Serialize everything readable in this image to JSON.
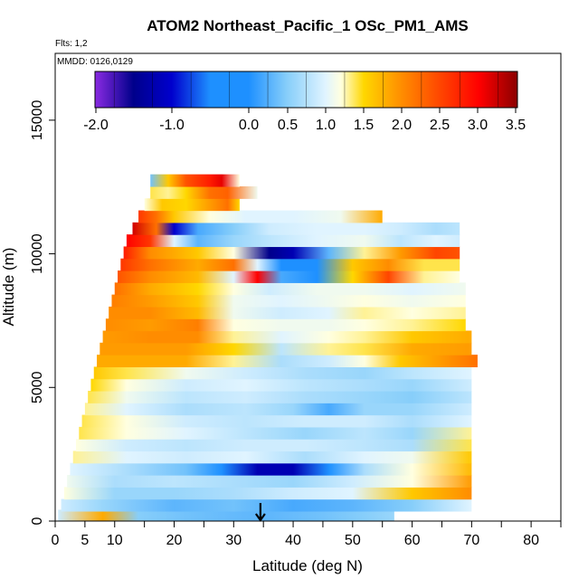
{
  "chart_data": {
    "type": "heatmap",
    "title": "ATOM2 Northeast_Pacific_1 OSc_PM1_AMS",
    "annotations": [
      "Flts: 1,2",
      "MMDD: 0126,0129"
    ],
    "xlabel": "Latitude (deg N)",
    "ylabel": "Altitude (m)",
    "xlim": [
      0,
      85
    ],
    "ylim": [
      0,
      17500
    ],
    "x_ticks": [
      0,
      5,
      10,
      20,
      30,
      40,
      50,
      60,
      70,
      80
    ],
    "x_minor_ticks": [
      15,
      25,
      35,
      45,
      55,
      65,
      75,
      85
    ],
    "y_ticks": [
      0,
      5000,
      10000,
      15000
    ],
    "colorbar": {
      "range": [
        -2.0,
        3.5
      ],
      "tick_labels": [
        "-2.0",
        "-1.0",
        "0.0",
        "0.5",
        "1.0",
        "1.5",
        "2.0",
        "2.5",
        "3.0",
        "3.5"
      ],
      "tick_values": [
        -2.0,
        -1.0,
        0.0,
        0.5,
        1.0,
        1.5,
        2.0,
        2.5,
        3.0,
        3.5
      ],
      "stops": [
        {
          "v": -2.0,
          "color": "#8a2be2"
        },
        {
          "v": -1.5,
          "color": "#00008b"
        },
        {
          "v": -1.0,
          "color": "#0000cd"
        },
        {
          "v": -0.5,
          "color": "#1e90ff"
        },
        {
          "v": 0.0,
          "color": "#1e90ff"
        },
        {
          "v": 0.5,
          "color": "#87cefa"
        },
        {
          "v": 1.0,
          "color": "#e0f4ff"
        },
        {
          "v": 1.2,
          "color": "#ffffe0"
        },
        {
          "v": 1.5,
          "color": "#ffd700"
        },
        {
          "v": 2.0,
          "color": "#ff8c00"
        },
        {
          "v": 2.5,
          "color": "#ff4500"
        },
        {
          "v": 3.0,
          "color": "#ff0000"
        },
        {
          "v": 3.5,
          "color": "#8b0000"
        }
      ]
    },
    "marker": {
      "x": 34.5,
      "y": 0,
      "icon": "down-arrow-icon"
    },
    "bands": [
      {
        "alt": 200,
        "x0": 0.5,
        "x1": 57,
        "v": [
          [
            0.5,
            0.9
          ],
          [
            8,
            1.8
          ],
          [
            14,
            0.5
          ],
          [
            22,
            0.4
          ],
          [
            35,
            0.3
          ],
          [
            45,
            0.4
          ],
          [
            52,
            0.5
          ],
          [
            57,
            0.6
          ]
        ]
      },
      {
        "alt": 600,
        "x0": 1,
        "x1": 70,
        "v": [
          [
            1,
            0.9
          ],
          [
            8,
            0.6
          ],
          [
            20,
            0.3
          ],
          [
            30,
            0.4
          ],
          [
            40,
            0.2
          ],
          [
            50,
            0.3
          ],
          [
            60,
            0.5
          ],
          [
            70,
            1.0
          ]
        ]
      },
      {
        "alt": 1050,
        "x0": 1.5,
        "x1": 70,
        "v": [
          [
            1.5,
            1.2
          ],
          [
            10,
            0.6
          ],
          [
            20,
            0.6
          ],
          [
            30,
            0.7
          ],
          [
            40,
            0.9
          ],
          [
            50,
            1.0
          ],
          [
            60,
            1.6
          ],
          [
            70,
            2.0
          ]
        ]
      },
      {
        "alt": 1500,
        "x0": 2,
        "x1": 70,
        "v": [
          [
            2,
            1.1
          ],
          [
            10,
            0.7
          ],
          [
            20,
            0.8
          ],
          [
            30,
            0.7
          ],
          [
            40,
            0.6
          ],
          [
            50,
            0.9
          ],
          [
            60,
            1.2
          ],
          [
            70,
            1.9
          ]
        ]
      },
      {
        "alt": 1950,
        "x0": 2.5,
        "x1": 70,
        "v": [
          [
            2.5,
            1.0
          ],
          [
            12,
            0.7
          ],
          [
            22,
            0.4
          ],
          [
            28,
            -0.5
          ],
          [
            34,
            -1.2
          ],
          [
            40,
            -1.2
          ],
          [
            46,
            0.0
          ],
          [
            52,
            0.7
          ],
          [
            60,
            1.2
          ],
          [
            70,
            1.7
          ]
        ]
      },
      {
        "alt": 2400,
        "x0": 3,
        "x1": 70,
        "v": [
          [
            3,
            1.3
          ],
          [
            12,
            1.0
          ],
          [
            22,
            0.9
          ],
          [
            32,
            1.0
          ],
          [
            42,
            0.7
          ],
          [
            52,
            1.0
          ],
          [
            60,
            1.1
          ],
          [
            70,
            1.6
          ]
        ]
      },
      {
        "alt": 2850,
        "x0": 3.5,
        "x1": 70,
        "v": [
          [
            3.5,
            1.2
          ],
          [
            12,
            0.9
          ],
          [
            22,
            0.8
          ],
          [
            32,
            0.9
          ],
          [
            42,
            0.9
          ],
          [
            52,
            0.8
          ],
          [
            60,
            0.7
          ],
          [
            70,
            1.4
          ]
        ]
      },
      {
        "alt": 3300,
        "x0": 4,
        "x1": 70,
        "v": [
          [
            4,
            1.4
          ],
          [
            12,
            1.2
          ],
          [
            22,
            1.0
          ],
          [
            32,
            0.8
          ],
          [
            42,
            0.6
          ],
          [
            52,
            0.8
          ],
          [
            60,
            0.6
          ],
          [
            70,
            1.3
          ]
        ]
      },
      {
        "alt": 3750,
        "x0": 4.5,
        "x1": 70,
        "v": [
          [
            4.5,
            1.4
          ],
          [
            12,
            1.2
          ],
          [
            22,
            0.9
          ],
          [
            32,
            0.8
          ],
          [
            42,
            0.9
          ],
          [
            52,
            0.9
          ],
          [
            60,
            0.7
          ],
          [
            70,
            1.0
          ]
        ]
      },
      {
        "alt": 4200,
        "x0": 5,
        "x1": 70,
        "v": [
          [
            5,
            1.3
          ],
          [
            12,
            1.0
          ],
          [
            22,
            0.7
          ],
          [
            32,
            0.8
          ],
          [
            40,
            0.6
          ],
          [
            46,
            0.2
          ],
          [
            52,
            0.6
          ],
          [
            60,
            0.6
          ],
          [
            70,
            0.9
          ]
        ]
      },
      {
        "alt": 4650,
        "x0": 5.5,
        "x1": 70,
        "v": [
          [
            5.5,
            1.4
          ],
          [
            12,
            1.1
          ],
          [
            22,
            0.8
          ],
          [
            32,
            0.9
          ],
          [
            42,
            0.7
          ],
          [
            52,
            0.6
          ],
          [
            60,
            0.5
          ],
          [
            70,
            0.8
          ]
        ]
      },
      {
        "alt": 5100,
        "x0": 6,
        "x1": 70,
        "v": [
          [
            6,
            1.5
          ],
          [
            12,
            1.2
          ],
          [
            22,
            0.9
          ],
          [
            32,
            1.0
          ],
          [
            42,
            0.8
          ],
          [
            52,
            0.7
          ],
          [
            60,
            0.6
          ],
          [
            70,
            0.9
          ]
        ]
      },
      {
        "alt": 5550,
        "x0": 6.5,
        "x1": 70,
        "v": [
          [
            6.5,
            1.6
          ],
          [
            12,
            1.4
          ],
          [
            22,
            1.1
          ],
          [
            32,
            0.9
          ],
          [
            42,
            0.7
          ],
          [
            52,
            0.6
          ],
          [
            60,
            0.8
          ],
          [
            70,
            1.0
          ]
        ]
      },
      {
        "alt": 6000,
        "x0": 7,
        "x1": 71,
        "v": [
          [
            7,
            1.8
          ],
          [
            14,
            1.8
          ],
          [
            22,
            1.8
          ],
          [
            30,
            1.3
          ],
          [
            38,
            0.7
          ],
          [
            46,
            0.9
          ],
          [
            52,
            1.2
          ],
          [
            58,
            1.6
          ],
          [
            71,
            2.2
          ]
        ]
      },
      {
        "alt": 6450,
        "x0": 7.5,
        "x1": 70,
        "v": [
          [
            7.5,
            1.9
          ],
          [
            14,
            1.9
          ],
          [
            22,
            1.9
          ],
          [
            30,
            1.5
          ],
          [
            38,
            0.8
          ],
          [
            46,
            1.3
          ],
          [
            52,
            1.4
          ],
          [
            60,
            1.8
          ],
          [
            70,
            1.9
          ]
        ]
      },
      {
        "alt": 6900,
        "x0": 8,
        "x1": 70,
        "v": [
          [
            8,
            1.9
          ],
          [
            16,
            2.0
          ],
          [
            24,
            2.0
          ],
          [
            30,
            1.3
          ],
          [
            38,
            1.0
          ],
          [
            46,
            1.2
          ],
          [
            52,
            1.3
          ],
          [
            60,
            1.6
          ],
          [
            70,
            1.8
          ]
        ]
      },
      {
        "alt": 7350,
        "x0": 8.5,
        "x1": 69,
        "v": [
          [
            8.5,
            2.0
          ],
          [
            16,
            1.9
          ],
          [
            24,
            2.1
          ],
          [
            30,
            1.2
          ],
          [
            38,
            1.1
          ],
          [
            46,
            1.1
          ],
          [
            52,
            1.2
          ],
          [
            60,
            1.3
          ],
          [
            69,
            1.5
          ]
        ]
      },
      {
        "alt": 7800,
        "x0": 9,
        "x1": 69,
        "v": [
          [
            9,
            2.0
          ],
          [
            16,
            2.0
          ],
          [
            24,
            1.7
          ],
          [
            30,
            1.1
          ],
          [
            38,
            0.9
          ],
          [
            46,
            1.0
          ],
          [
            52,
            1.3
          ],
          [
            60,
            1.2
          ],
          [
            69,
            1.3
          ]
        ]
      },
      {
        "alt": 8250,
        "x0": 9.5,
        "x1": 69,
        "v": [
          [
            9.5,
            2.1
          ],
          [
            16,
            1.9
          ],
          [
            24,
            1.6
          ],
          [
            30,
            1.1
          ],
          [
            38,
            1.0
          ],
          [
            46,
            1.1
          ],
          [
            52,
            1.2
          ],
          [
            60,
            1.1
          ],
          [
            69,
            1.2
          ]
        ]
      },
      {
        "alt": 8700,
        "x0": 10,
        "x1": 69,
        "v": [
          [
            10,
            2.2
          ],
          [
            16,
            1.8
          ],
          [
            24,
            1.5
          ],
          [
            30,
            1.2
          ],
          [
            36,
            0.9
          ],
          [
            44,
            1.1
          ],
          [
            52,
            1.1
          ],
          [
            60,
            1.0
          ],
          [
            69,
            1.1
          ]
        ]
      },
      {
        "alt": 9150,
        "x0": 10.5,
        "x1": 68,
        "v": [
          [
            10.5,
            2.4
          ],
          [
            16,
            2.0
          ],
          [
            24,
            1.7
          ],
          [
            30,
            1.0
          ],
          [
            34,
            3.0
          ],
          [
            38,
            0.2
          ],
          [
            44,
            -0.5
          ],
          [
            50,
            1.5
          ],
          [
            56,
            2.5
          ],
          [
            62,
            1.3
          ],
          [
            68,
            1.2
          ]
        ]
      },
      {
        "alt": 9600,
        "x0": 11,
        "x1": 68,
        "v": [
          [
            11,
            2.6
          ],
          [
            16,
            2.2
          ],
          [
            24,
            1.8
          ],
          [
            30,
            2.2
          ],
          [
            34,
            1.0
          ],
          [
            38,
            -0.3
          ],
          [
            44,
            -0.5
          ],
          [
            50,
            1.6
          ],
          [
            56,
            2.0
          ],
          [
            62,
            1.4
          ],
          [
            68,
            1.4
          ]
        ]
      },
      {
        "alt": 10050,
        "x0": 11.5,
        "x1": 68,
        "v": [
          [
            11.5,
            2.8
          ],
          [
            16,
            2.0
          ],
          [
            24,
            1.6
          ],
          [
            30,
            1.2
          ],
          [
            36,
            -1.5
          ],
          [
            40,
            -1.2
          ],
          [
            46,
            0.3
          ],
          [
            52,
            1.3
          ],
          [
            58,
            1.9
          ],
          [
            64,
            2.5
          ],
          [
            68,
            2.4
          ]
        ]
      },
      {
        "alt": 10500,
        "x0": 12,
        "x1": 68,
        "v": [
          [
            12,
            3.0
          ],
          [
            16,
            2.6
          ],
          [
            20,
            1.0
          ],
          [
            24,
            0.3
          ],
          [
            30,
            0.6
          ],
          [
            36,
            0.8
          ],
          [
            44,
            1.0
          ],
          [
            52,
            1.1
          ],
          [
            58,
            0.8
          ],
          [
            64,
            1.0
          ],
          [
            68,
            0.9
          ]
        ]
      },
      {
        "alt": 10950,
        "x0": 13,
        "x1": 68,
        "v": [
          [
            13,
            3.2
          ],
          [
            17,
            2.2
          ],
          [
            20,
            -1.0
          ],
          [
            24,
            0.2
          ],
          [
            30,
            0.5
          ],
          [
            36,
            0.9
          ],
          [
            44,
            1.0
          ],
          [
            52,
            1.0
          ],
          [
            58,
            0.9
          ],
          [
            64,
            0.7
          ],
          [
            68,
            0.8
          ]
        ]
      },
      {
        "alt": 11400,
        "x0": 14,
        "x1": 55,
        "v": [
          [
            14,
            2.6
          ],
          [
            17,
            2.2
          ],
          [
            20,
            1.6
          ],
          [
            26,
            1.2
          ],
          [
            32,
            1.0
          ],
          [
            40,
            1.0
          ],
          [
            48,
            1.1
          ],
          [
            55,
            1.8
          ]
        ]
      },
      {
        "alt": 11850,
        "x0": 15,
        "x1": 31,
        "v": [
          [
            15,
            1.2
          ],
          [
            18,
            1.6
          ],
          [
            22,
            1.5
          ],
          [
            26,
            1.9
          ],
          [
            29,
            2.2
          ],
          [
            31,
            1.5
          ]
        ]
      },
      {
        "alt": 12300,
        "x0": 16,
        "x1": 34,
        "v": [
          [
            16,
            1.4
          ],
          [
            19,
            1.3
          ],
          [
            22,
            1.5
          ],
          [
            26,
            2.2
          ],
          [
            29,
            2.3
          ],
          [
            34,
            1.1
          ]
        ]
      },
      {
        "alt": 12750,
        "x0": 16,
        "x1": 31,
        "v": [
          [
            16,
            0.4
          ],
          [
            19,
            1.6
          ],
          [
            22,
            2.4
          ],
          [
            26,
            2.8
          ],
          [
            28,
            3.1
          ],
          [
            31,
            1.2
          ]
        ]
      }
    ]
  }
}
